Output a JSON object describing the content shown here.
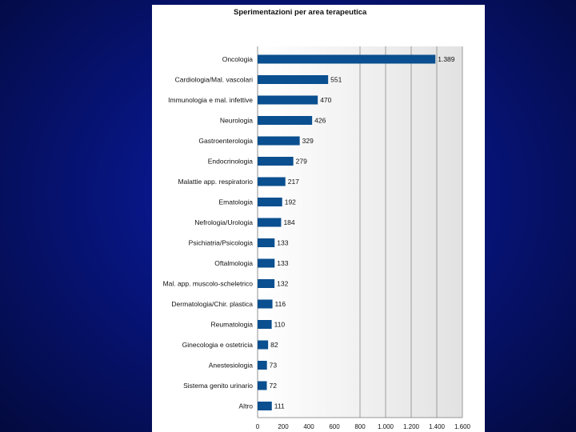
{
  "colors": {
    "background": "#07147a",
    "bar": "#0a4f8f",
    "panel": "#ffffff",
    "plot_gradient_start": "#ffffff",
    "plot_gradient_end": "#e2e2e2",
    "gridline": "#8a8a8a"
  },
  "chart_data": {
    "type": "bar",
    "orientation": "horizontal",
    "title": "Sperimentazioni per area terapeutica",
    "xlabel": "",
    "ylabel": "",
    "xlim": [
      0,
      1600
    ],
    "x_ticks": [
      "0",
      "200",
      "400",
      "600",
      "800",
      "1.000",
      "1.200",
      "1.400",
      "1.600"
    ],
    "grid": "vertical gridlines at 800 and above",
    "legend": "none",
    "categories": [
      "Oncologia",
      "Cardiologia/Mal. vascolari",
      "Immunologia e mal. infettive",
      "Neurologia",
      "Gastroenterologia",
      "Endocrinologia",
      "Malattie app. respiratorio",
      "Ematologia",
      "Nefrologia/Urologia",
      "Psichiatria/Psicologia",
      "Oftalmologia",
      "Mal. app. muscolo-scheletrico",
      "Dermatologia/Chir. plastica",
      "Reumatologia",
      "Ginecologia e ostetricia",
      "Anestesiologia",
      "Sistema genito urinario",
      "Altro"
    ],
    "values": [
      1389,
      551,
      470,
      426,
      329,
      279,
      217,
      192,
      184,
      133,
      133,
      132,
      116,
      110,
      82,
      73,
      72,
      111
    ],
    "value_labels": [
      "1.389",
      "551",
      "470",
      "426",
      "329",
      "279",
      "217",
      "192",
      "184",
      "133",
      "133",
      "132",
      "116",
      "110",
      "82",
      "73",
      "72",
      "111"
    ]
  }
}
